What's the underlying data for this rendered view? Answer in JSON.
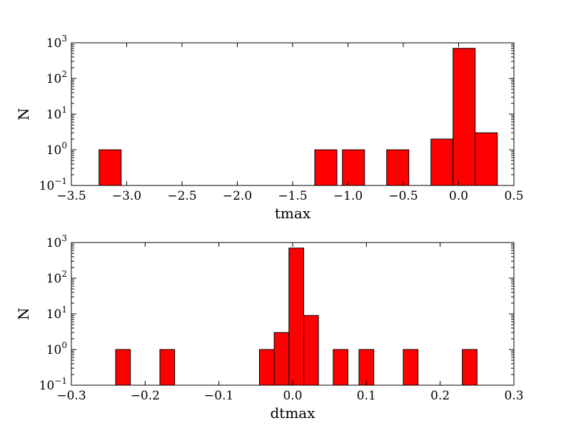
{
  "chart_data": [
    {
      "type": "bar",
      "xlabel": "tmax",
      "ylabel": "N",
      "yscale": "log",
      "xlim": [
        -3.5,
        0.5
      ],
      "ylim": [
        0.1,
        1000
      ],
      "bin_width": 0.2,
      "xticks": [
        "−3.5",
        "−3.0",
        "−2.5",
        "−2.0",
        "−1.5",
        "−1.0",
        "−0.5",
        "0.0",
        "0.5"
      ],
      "yticks": [
        {
          "base": "10",
          "exp": "−1"
        },
        {
          "base": "10",
          "exp": "0"
        },
        {
          "base": "10",
          "exp": "1"
        },
        {
          "base": "10",
          "exp": "2"
        },
        {
          "base": "10",
          "exp": "3"
        }
      ],
      "bars": [
        {
          "x": -3.15,
          "value": 1
        },
        {
          "x": -1.2,
          "value": 1
        },
        {
          "x": -0.95,
          "value": 1
        },
        {
          "x": -0.55,
          "value": 1
        },
        {
          "x": -0.15,
          "value": 2
        },
        {
          "x": 0.05,
          "value": 700
        },
        {
          "x": 0.25,
          "value": 3
        }
      ],
      "bar_color": "#ff0000"
    },
    {
      "type": "bar",
      "xlabel": "dtmax",
      "ylabel": "N",
      "yscale": "log",
      "xlim": [
        -0.3,
        0.3
      ],
      "ylim": [
        0.1,
        1000
      ],
      "bin_width": 0.02,
      "xticks": [
        "−0.3",
        "−0.2",
        "−0.1",
        "0.0",
        "0.1",
        "0.2",
        "0.3"
      ],
      "yticks": [
        {
          "base": "10",
          "exp": "−1"
        },
        {
          "base": "10",
          "exp": "0"
        },
        {
          "base": "10",
          "exp": "1"
        },
        {
          "base": "10",
          "exp": "2"
        },
        {
          "base": "10",
          "exp": "3"
        }
      ],
      "bars": [
        {
          "x": -0.23,
          "value": 1
        },
        {
          "x": -0.17,
          "value": 1
        },
        {
          "x": -0.035,
          "value": 1
        },
        {
          "x": -0.015,
          "value": 3
        },
        {
          "x": 0.005,
          "value": 700
        },
        {
          "x": 0.025,
          "value": 9
        },
        {
          "x": 0.065,
          "value": 1
        },
        {
          "x": 0.1,
          "value": 1
        },
        {
          "x": 0.16,
          "value": 1
        },
        {
          "x": 0.24,
          "value": 1
        }
      ],
      "bar_color": "#ff0000"
    }
  ]
}
